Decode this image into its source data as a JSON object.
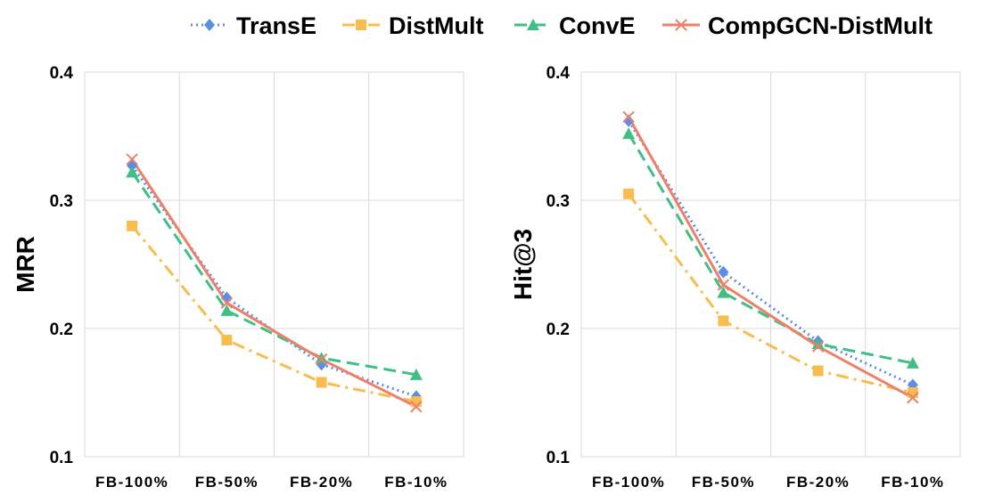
{
  "legend": [
    {
      "name": "TransE",
      "color": "#5b8ee6",
      "marker": "diamond",
      "dash": "dot"
    },
    {
      "name": "DistMult",
      "color": "#f9bc4e",
      "marker": "square",
      "dash": "dashdot"
    },
    {
      "name": "ConvE",
      "color": "#3fbf86",
      "marker": "triangle",
      "dash": "dash"
    },
    {
      "name": "CompGCN-DistMult",
      "color": "#ee806a",
      "marker": "cross",
      "dash": "solid"
    }
  ],
  "chart_data": [
    {
      "type": "line",
      "categories": [
        "FB-100%",
        "FB-50%",
        "FB-20%",
        "FB-10%"
      ],
      "ylabel": "MRR",
      "ylim": [
        0.1,
        0.4
      ],
      "yticks": [
        "0.1",
        "0.2",
        "0.3",
        "0.4"
      ],
      "grid": true,
      "series": [
        {
          "name": "TransE",
          "values": [
            0.327,
            0.224,
            0.172,
            0.147
          ]
        },
        {
          "name": "DistMult",
          "values": [
            0.28,
            0.191,
            0.158,
            0.143
          ]
        },
        {
          "name": "ConvE",
          "values": [
            0.322,
            0.214,
            0.177,
            0.164
          ]
        },
        {
          "name": "CompGCN-DistMult",
          "values": [
            0.332,
            0.22,
            0.176,
            0.139
          ]
        }
      ]
    },
    {
      "type": "line",
      "categories": [
        "FB-100%",
        "FB-50%",
        "FB-20%",
        "FB-10%"
      ],
      "ylabel": "Hit@3",
      "ylim": [
        0.1,
        0.4
      ],
      "yticks": [
        "0.1",
        "0.2",
        "0.3",
        "0.4"
      ],
      "grid": true,
      "series": [
        {
          "name": "TransE",
          "values": [
            0.362,
            0.244,
            0.19,
            0.156
          ]
        },
        {
          "name": "DistMult",
          "values": [
            0.305,
            0.206,
            0.167,
            0.15
          ]
        },
        {
          "name": "ConvE",
          "values": [
            0.352,
            0.228,
            0.188,
            0.173
          ]
        },
        {
          "name": "CompGCN-DistMult",
          "values": [
            0.365,
            0.234,
            0.186,
            0.146
          ]
        }
      ]
    }
  ]
}
